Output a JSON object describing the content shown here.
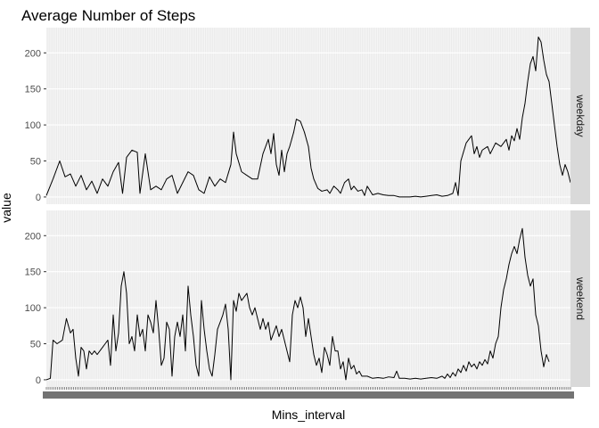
{
  "chart_data": {
    "type": "line",
    "title": "Average Number of Steps",
    "xlabel": "Mins_interval",
    "ylabel": "value",
    "ylim": [
      -10,
      235
    ],
    "yticks": [
      0,
      50,
      100,
      150,
      200
    ],
    "x_count": 288,
    "grid": true,
    "colors": {
      "line": "#000000",
      "panel": "#ebebeb",
      "strip": "#d9d9d9",
      "grid": "#ffffff"
    },
    "facets": [
      {
        "name": "weekday",
        "points": [
          [
            0,
            2
          ],
          [
            5,
            25
          ],
          [
            10,
            50
          ],
          [
            14,
            28
          ],
          [
            18,
            32
          ],
          [
            22,
            15
          ],
          [
            26,
            30
          ],
          [
            30,
            10
          ],
          [
            34,
            22
          ],
          [
            38,
            5
          ],
          [
            42,
            25
          ],
          [
            46,
            15
          ],
          [
            50,
            35
          ],
          [
            54,
            48
          ],
          [
            57,
            5
          ],
          [
            60,
            55
          ],
          [
            64,
            65
          ],
          [
            68,
            62
          ],
          [
            70,
            5
          ],
          [
            74,
            60
          ],
          [
            78,
            10
          ],
          [
            82,
            15
          ],
          [
            86,
            10
          ],
          [
            90,
            25
          ],
          [
            94,
            30
          ],
          [
            98,
            5
          ],
          [
            102,
            20
          ],
          [
            106,
            35
          ],
          [
            110,
            30
          ],
          [
            114,
            10
          ],
          [
            118,
            5
          ],
          [
            122,
            28
          ],
          [
            126,
            15
          ],
          [
            130,
            25
          ],
          [
            134,
            20
          ],
          [
            138,
            45
          ],
          [
            140,
            90
          ],
          [
            142,
            60
          ],
          [
            146,
            35
          ],
          [
            150,
            30
          ],
          [
            154,
            25
          ],
          [
            158,
            25
          ],
          [
            162,
            60
          ],
          [
            166,
            80
          ],
          [
            168,
            60
          ],
          [
            170,
            88
          ],
          [
            172,
            45
          ],
          [
            174,
            30
          ],
          [
            176,
            65
          ],
          [
            178,
            35
          ],
          [
            180,
            60
          ],
          [
            182,
            70
          ],
          [
            185,
            90
          ],
          [
            187,
            108
          ],
          [
            190,
            105
          ],
          [
            193,
            90
          ],
          [
            196,
            70
          ],
          [
            198,
            40
          ],
          [
            200,
            25
          ],
          [
            203,
            12
          ],
          [
            206,
            8
          ],
          [
            210,
            10
          ],
          [
            212,
            5
          ],
          [
            215,
            15
          ],
          [
            218,
            10
          ],
          [
            220,
            5
          ],
          [
            223,
            20
          ],
          [
            226,
            25
          ],
          [
            228,
            10
          ],
          [
            230,
            15
          ],
          [
            233,
            8
          ],
          [
            236,
            10
          ],
          [
            238,
            2
          ],
          [
            240,
            15
          ],
          [
            244,
            3
          ],
          [
            248,
            5
          ],
          [
            252,
            3
          ],
          [
            256,
            2
          ],
          [
            260,
            2
          ],
          [
            264,
            0
          ],
          [
            268,
            0
          ],
          [
            272,
            0
          ],
          [
            276,
            1
          ],
          [
            280,
            0
          ],
          [
            284,
            1
          ],
          [
            288,
            2
          ],
          [
            292,
            3
          ],
          [
            296,
            1
          ],
          [
            300,
            2
          ],
          [
            304,
            5
          ],
          [
            306,
            20
          ],
          [
            308,
            2
          ],
          [
            310,
            50
          ],
          [
            314,
            75
          ],
          [
            318,
            85
          ],
          [
            320,
            60
          ],
          [
            322,
            70
          ],
          [
            324,
            55
          ],
          [
            326,
            65
          ],
          [
            330,
            70
          ],
          [
            332,
            60
          ],
          [
            336,
            75
          ],
          [
            340,
            70
          ],
          [
            344,
            80
          ],
          [
            346,
            65
          ],
          [
            348,
            85
          ],
          [
            350,
            78
          ],
          [
            352,
            95
          ],
          [
            354,
            80
          ],
          [
            356,
            110
          ],
          [
            358,
            130
          ],
          [
            360,
            160
          ],
          [
            362,
            185
          ],
          [
            364,
            195
          ],
          [
            366,
            175
          ],
          [
            368,
            222
          ],
          [
            370,
            215
          ],
          [
            372,
            190
          ],
          [
            374,
            170
          ],
          [
            376,
            160
          ],
          [
            378,
            130
          ],
          [
            380,
            100
          ],
          [
            382,
            70
          ],
          [
            384,
            45
          ],
          [
            386,
            30
          ],
          [
            388,
            45
          ],
          [
            390,
            35
          ],
          [
            392,
            20
          ]
        ]
      },
      {
        "name": "weekend",
        "points": [
          [
            0,
            0
          ],
          [
            3,
            2
          ],
          [
            5,
            55
          ],
          [
            8,
            50
          ],
          [
            12,
            55
          ],
          [
            15,
            85
          ],
          [
            18,
            65
          ],
          [
            20,
            70
          ],
          [
            22,
            30
          ],
          [
            24,
            5
          ],
          [
            26,
            45
          ],
          [
            28,
            40
          ],
          [
            30,
            15
          ],
          [
            32,
            40
          ],
          [
            34,
            35
          ],
          [
            36,
            40
          ],
          [
            38,
            35
          ],
          [
            40,
            40
          ],
          [
            42,
            45
          ],
          [
            44,
            50
          ],
          [
            46,
            55
          ],
          [
            48,
            20
          ],
          [
            50,
            90
          ],
          [
            52,
            40
          ],
          [
            54,
            65
          ],
          [
            56,
            130
          ],
          [
            58,
            150
          ],
          [
            60,
            120
          ],
          [
            62,
            50
          ],
          [
            64,
            60
          ],
          [
            66,
            40
          ],
          [
            68,
            90
          ],
          [
            70,
            60
          ],
          [
            72,
            70
          ],
          [
            74,
            40
          ],
          [
            76,
            90
          ],
          [
            78,
            80
          ],
          [
            80,
            65
          ],
          [
            82,
            110
          ],
          [
            84,
            70
          ],
          [
            86,
            20
          ],
          [
            88,
            30
          ],
          [
            90,
            80
          ],
          [
            92,
            70
          ],
          [
            94,
            5
          ],
          [
            96,
            60
          ],
          [
            98,
            80
          ],
          [
            100,
            60
          ],
          [
            102,
            90
          ],
          [
            104,
            40
          ],
          [
            106,
            130
          ],
          [
            108,
            90
          ],
          [
            110,
            60
          ],
          [
            112,
            20
          ],
          [
            114,
            5
          ],
          [
            116,
            110
          ],
          [
            118,
            70
          ],
          [
            120,
            40
          ],
          [
            122,
            15
          ],
          [
            124,
            5
          ],
          [
            126,
            35
          ],
          [
            128,
            70
          ],
          [
            130,
            80
          ],
          [
            132,
            90
          ],
          [
            134,
            105
          ],
          [
            136,
            70
          ],
          [
            138,
            0
          ],
          [
            140,
            110
          ],
          [
            142,
            95
          ],
          [
            144,
            120
          ],
          [
            146,
            110
          ],
          [
            148,
            115
          ],
          [
            150,
            120
          ],
          [
            152,
            100
          ],
          [
            154,
            90
          ],
          [
            156,
            100
          ],
          [
            158,
            85
          ],
          [
            160,
            70
          ],
          [
            162,
            85
          ],
          [
            164,
            70
          ],
          [
            166,
            80
          ],
          [
            168,
            55
          ],
          [
            170,
            65
          ],
          [
            172,
            75
          ],
          [
            174,
            60
          ],
          [
            176,
            70
          ],
          [
            178,
            55
          ],
          [
            180,
            40
          ],
          [
            182,
            25
          ],
          [
            184,
            90
          ],
          [
            186,
            110
          ],
          [
            188,
            100
          ],
          [
            190,
            115
          ],
          [
            192,
            100
          ],
          [
            194,
            60
          ],
          [
            196,
            85
          ],
          [
            198,
            60
          ],
          [
            200,
            35
          ],
          [
            202,
            20
          ],
          [
            204,
            30
          ],
          [
            206,
            10
          ],
          [
            208,
            45
          ],
          [
            210,
            35
          ],
          [
            212,
            20
          ],
          [
            214,
            60
          ],
          [
            216,
            40
          ],
          [
            218,
            40
          ],
          [
            220,
            15
          ],
          [
            222,
            25
          ],
          [
            224,
            0
          ],
          [
            226,
            30
          ],
          [
            228,
            15
          ],
          [
            230,
            20
          ],
          [
            232,
            8
          ],
          [
            234,
            12
          ],
          [
            236,
            5
          ],
          [
            240,
            5
          ],
          [
            244,
            2
          ],
          [
            248,
            3
          ],
          [
            252,
            2
          ],
          [
            256,
            4
          ],
          [
            260,
            3
          ],
          [
            262,
            12
          ],
          [
            264,
            2
          ],
          [
            268,
            2
          ],
          [
            272,
            1
          ],
          [
            276,
            2
          ],
          [
            280,
            1
          ],
          [
            284,
            2
          ],
          [
            288,
            3
          ],
          [
            292,
            2
          ],
          [
            296,
            5
          ],
          [
            298,
            2
          ],
          [
            300,
            8
          ],
          [
            302,
            3
          ],
          [
            304,
            10
          ],
          [
            306,
            5
          ],
          [
            308,
            15
          ],
          [
            310,
            10
          ],
          [
            312,
            20
          ],
          [
            314,
            12
          ],
          [
            316,
            25
          ],
          [
            318,
            18
          ],
          [
            320,
            22
          ],
          [
            322,
            15
          ],
          [
            324,
            25
          ],
          [
            326,
            20
          ],
          [
            328,
            28
          ],
          [
            330,
            22
          ],
          [
            332,
            40
          ],
          [
            334,
            30
          ],
          [
            336,
            50
          ],
          [
            338,
            60
          ],
          [
            340,
            100
          ],
          [
            342,
            125
          ],
          [
            344,
            140
          ],
          [
            346,
            160
          ],
          [
            348,
            175
          ],
          [
            350,
            185
          ],
          [
            352,
            175
          ],
          [
            354,
            195
          ],
          [
            356,
            210
          ],
          [
            358,
            170
          ],
          [
            360,
            145
          ],
          [
            362,
            130
          ],
          [
            364,
            140
          ],
          [
            366,
            90
          ],
          [
            368,
            75
          ],
          [
            370,
            40
          ],
          [
            372,
            18
          ],
          [
            374,
            35
          ],
          [
            376,
            25
          ]
        ]
      }
    ]
  }
}
